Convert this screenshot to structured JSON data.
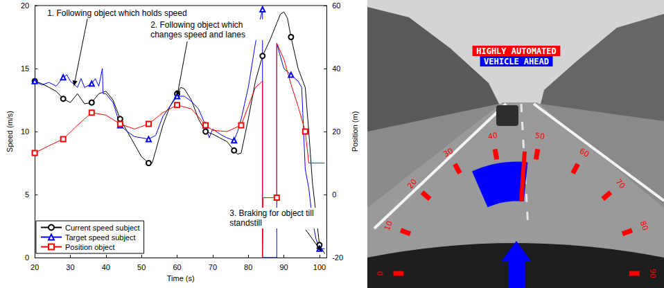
{
  "chart_data": {
    "type": "line",
    "xlabel": "Time (s)",
    "ylabel": "Speed (m/s)",
    "y2label": "Position (m)",
    "xlim": [
      20,
      102
    ],
    "xticks": [
      20,
      30,
      40,
      50,
      60,
      70,
      80,
      90,
      100
    ],
    "ylim": [
      0,
      20
    ],
    "yticks": [
      0,
      5,
      10,
      15,
      20
    ],
    "y2lim": [
      -20,
      60
    ],
    "y2ticks": [
      -20,
      0,
      20,
      40,
      60
    ],
    "grid": false,
    "legend": "lower left",
    "series": [
      {
        "name": "Current speed subject",
        "color": "#000000",
        "marker": "circle",
        "x": [
          20,
          22,
          24,
          26,
          28,
          30,
          32,
          34,
          36,
          38,
          40,
          42,
          44,
          46,
          48,
          50,
          52,
          53,
          54,
          56,
          58,
          60,
          61,
          62,
          64,
          66,
          68,
          70,
          72,
          74,
          76,
          77,
          78,
          80,
          82,
          84,
          86,
          88,
          89,
          90,
          91,
          92,
          94,
          96,
          97,
          98,
          99,
          100,
          101.5
        ],
        "values": [
          14,
          13.8,
          13.5,
          13.2,
          12.6,
          12.3,
          13,
          12.2,
          12.3,
          13,
          13.2,
          12.5,
          11,
          10,
          9,
          8,
          7.5,
          7.5,
          8.5,
          10.5,
          12,
          13,
          13.5,
          13.4,
          12.5,
          11,
          10,
          9.8,
          9.5,
          9.2,
          8.5,
          8.2,
          8.3,
          11,
          14,
          16,
          17.2,
          18.6,
          19.3,
          19.5,
          19,
          17.5,
          15,
          13.5,
          10,
          6,
          3.5,
          1,
          0.3
        ]
      },
      {
        "name": "Target speed subject",
        "color": "#0000ff",
        "marker": "triangle",
        "x": [
          20,
          22,
          24,
          26,
          28,
          29,
          30,
          32,
          33,
          34,
          36,
          37,
          38,
          39,
          39.2,
          40,
          42,
          44,
          46,
          48,
          50,
          52,
          54,
          56,
          58,
          60,
          62,
          64,
          66,
          68,
          69,
          70,
          72,
          74,
          76,
          77,
          78,
          80,
          82,
          83,
          84,
          84,
          88,
          88,
          89,
          90,
          92,
          94,
          95,
          96,
          97,
          98,
          99,
          100,
          101.5
        ],
        "values": [
          14,
          13.7,
          13.9,
          13.6,
          14.3,
          14.5,
          14,
          13.5,
          14.2,
          13.5,
          13.8,
          14.2,
          13.6,
          15,
          13,
          13,
          12.3,
          10.5,
          10,
          9.6,
          9.5,
          9.4,
          9.7,
          11.2,
          12,
          12.8,
          12.8,
          12.4,
          11.8,
          10.5,
          9.5,
          10.2,
          9.8,
          9.5,
          9.3,
          10,
          11,
          13.5,
          17,
          18.5,
          19.7,
          0,
          0,
          17,
          16,
          15,
          14.5,
          14,
          13.5,
          7,
          5.5,
          3,
          1.5,
          0.7,
          0.7
        ]
      },
      {
        "name": "Position object",
        "color": "#ff0000",
        "marker": "square",
        "axis": "y2",
        "x": [
          20,
          24,
          28,
          32,
          36,
          40,
          44,
          48,
          52,
          56,
          60,
          64,
          68,
          70,
          74,
          78,
          80,
          82,
          84,
          84,
          84.2,
          88,
          88,
          90,
          92,
          94,
          96,
          97,
          100,
          101.5
        ],
        "values": [
          13.2,
          15.5,
          17.6,
          22,
          26,
          25.2,
          22.4,
          20.8,
          22.4,
          26,
          28.4,
          27.2,
          22,
          20.4,
          20,
          22,
          28,
          34,
          36,
          -20,
          -1,
          -1,
          48,
          43,
          35,
          28,
          20,
          10,
          10,
          10
        ]
      }
    ],
    "annotations": [
      {
        "text": "1. Following object which holds speed",
        "x": 31,
        "y": 13.6
      },
      {
        "text": "2. Following object which changes speed and lanes",
        "x": 60,
        "y": 12.8
      },
      {
        "text": "3. Braking for object till standstill",
        "x": 100.5,
        "y": 0.5
      }
    ]
  },
  "hud": {
    "status_labels": [
      {
        "text": "HIGHLY AUTOMATED",
        "color": "#ff0000"
      },
      {
        "text": "VEHICLE AHEAD",
        "color": "#0000ff"
      }
    ],
    "gauge": {
      "ticks": [
        0,
        10,
        20,
        30,
        40,
        50,
        60,
        70,
        80,
        90
      ],
      "color": "#ff0000",
      "range": [
        33,
        48
      ],
      "range_color": "#0000ff",
      "value": 47
    }
  }
}
